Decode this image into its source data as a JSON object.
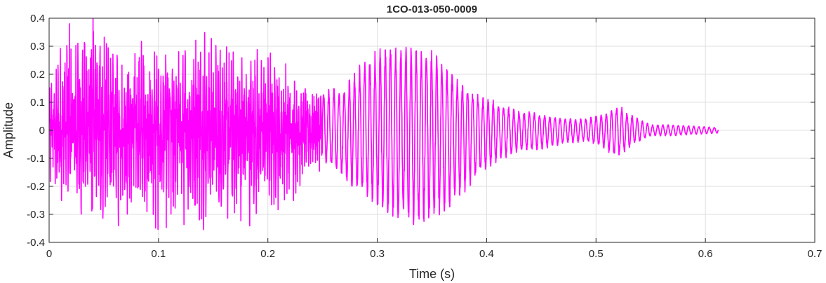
{
  "chart_data": {
    "type": "line",
    "title": "1CO-013-050-0009",
    "xlabel": "Time (s)",
    "ylabel": "Amplitude",
    "xlim": [
      0,
      0.7
    ],
    "ylim": [
      -0.4,
      0.4
    ],
    "x_ticks": [
      "0",
      "0.1",
      "0.2",
      "0.3",
      "0.4",
      "0.5",
      "0.6",
      "0.7"
    ],
    "y_ticks": [
      "0.4",
      "0.3",
      "0.2",
      "0.1",
      "0",
      "-0.1",
      "-0.2",
      "-0.3",
      "-0.4"
    ],
    "grid": true,
    "series": [
      {
        "color": "#ff00ff",
        "duration": 0.612,
        "envelope": [
          {
            "t": 0.0,
            "pos": 0.13,
            "neg": -0.16
          },
          {
            "t": 0.02,
            "pos": 0.3,
            "neg": -0.2
          },
          {
            "t": 0.04,
            "pos": 0.33,
            "neg": -0.26
          },
          {
            "t": 0.06,
            "pos": 0.21,
            "neg": -0.23
          },
          {
            "t": 0.08,
            "pos": 0.23,
            "neg": -0.21
          },
          {
            "t": 0.1,
            "pos": 0.21,
            "neg": -0.27
          },
          {
            "t": 0.12,
            "pos": 0.21,
            "neg": -0.22
          },
          {
            "t": 0.14,
            "pos": 0.28,
            "neg": -0.25
          },
          {
            "t": 0.16,
            "pos": 0.21,
            "neg": -0.22
          },
          {
            "t": 0.18,
            "pos": 0.21,
            "neg": -0.24
          },
          {
            "t": 0.2,
            "pos": 0.21,
            "neg": -0.2
          },
          {
            "t": 0.22,
            "pos": 0.16,
            "neg": -0.18
          },
          {
            "t": 0.24,
            "pos": 0.11,
            "neg": -0.11
          },
          {
            "t": 0.25,
            "pos": 0.14,
            "neg": -0.11
          },
          {
            "t": 0.27,
            "pos": 0.16,
            "neg": -0.18
          },
          {
            "t": 0.29,
            "pos": 0.26,
            "neg": -0.25
          },
          {
            "t": 0.31,
            "pos": 0.31,
            "neg": -0.3
          },
          {
            "t": 0.33,
            "pos": 0.3,
            "neg": -0.34
          },
          {
            "t": 0.35,
            "pos": 0.29,
            "neg": -0.33
          },
          {
            "t": 0.37,
            "pos": 0.2,
            "neg": -0.27
          },
          {
            "t": 0.39,
            "pos": 0.13,
            "neg": -0.17
          },
          {
            "t": 0.41,
            "pos": 0.1,
            "neg": -0.11
          },
          {
            "t": 0.43,
            "pos": 0.07,
            "neg": -0.08
          },
          {
            "t": 0.45,
            "pos": 0.06,
            "neg": -0.07
          },
          {
            "t": 0.47,
            "pos": 0.045,
            "neg": -0.05
          },
          {
            "t": 0.49,
            "pos": 0.04,
            "neg": -0.04
          },
          {
            "t": 0.505,
            "pos": 0.06,
            "neg": -0.06
          },
          {
            "t": 0.52,
            "pos": 0.09,
            "neg": -0.1
          },
          {
            "t": 0.535,
            "pos": 0.05,
            "neg": -0.05
          },
          {
            "t": 0.55,
            "pos": 0.02,
            "neg": -0.02
          },
          {
            "t": 0.57,
            "pos": 0.02,
            "neg": -0.02
          },
          {
            "t": 0.59,
            "pos": 0.015,
            "neg": -0.015
          },
          {
            "t": 0.612,
            "pos": 0.01,
            "neg": -0.01
          }
        ],
        "segments": [
          {
            "from": 0.0,
            "to": 0.25,
            "cycle_period_s": 0.002,
            "character": "noisy"
          },
          {
            "from": 0.25,
            "to": 0.612,
            "cycle_period_s": 0.0047,
            "character": "periodic"
          }
        ]
      }
    ]
  }
}
